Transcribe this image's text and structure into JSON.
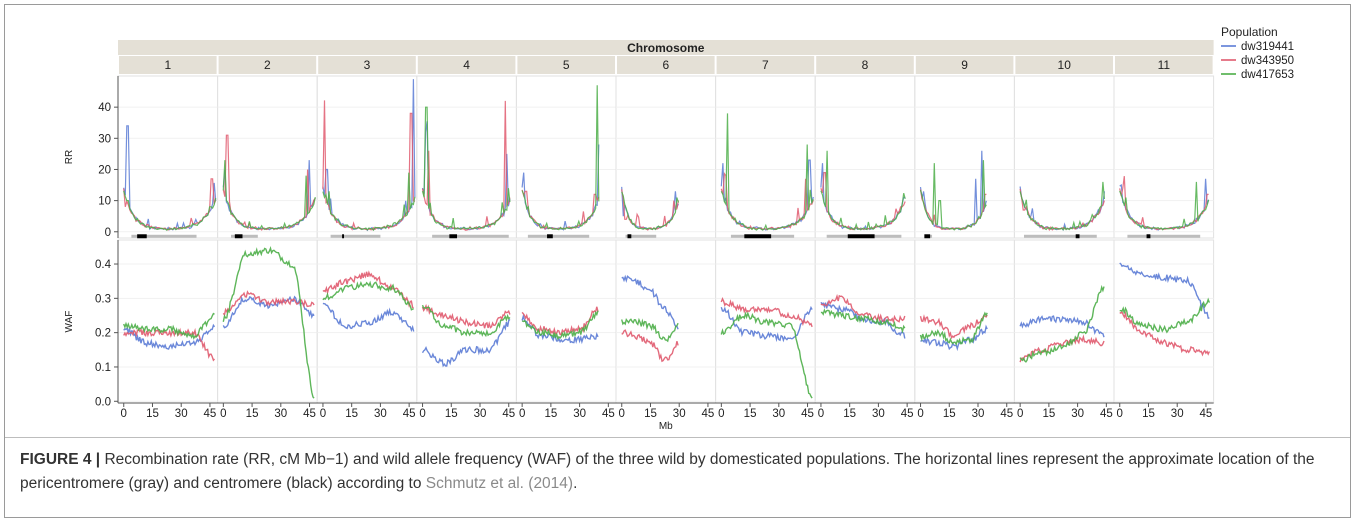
{
  "chart_data": {
    "type": "line",
    "facet_title": "Chromosome",
    "facets": [
      "1",
      "2",
      "3",
      "4",
      "5",
      "6",
      "7",
      "8",
      "9",
      "10",
      "11"
    ],
    "xlabel": "Mb",
    "x_ticks": [
      0,
      15,
      30,
      45
    ],
    "xlim": [
      -3,
      49
    ],
    "legend": {
      "title": "Population",
      "position": "top-right"
    },
    "series": [
      {
        "name": "dw319441",
        "color": "#5b7bd5"
      },
      {
        "name": "dw343950",
        "color": "#e05a6e"
      },
      {
        "name": "dw417653",
        "color": "#4cae48"
      }
    ],
    "rows": [
      {
        "ylabel": "RR",
        "ylim": [
          -2,
          50
        ],
        "y_ticks": [
          0,
          10,
          20,
          30,
          40
        ]
      },
      {
        "ylabel": "WAF",
        "ylim": [
          -0.005,
          0.47
        ],
        "y_ticks": [
          0.0,
          0.1,
          0.2,
          0.3,
          0.4
        ],
        "y_tick_labels": [
          "0.0",
          "0.1",
          "0.2",
          "0.3",
          "0.4"
        ]
      }
    ],
    "chromosome_lengths_mb": [
      48,
      48,
      48,
      46,
      40,
      30,
      48,
      44,
      35,
      44,
      47
    ],
    "pericentromere_mb": [
      [
        4,
        38
      ],
      [
        4,
        18
      ],
      [
        4,
        30
      ],
      [
        5,
        45
      ],
      [
        3,
        35
      ],
      [
        2,
        18
      ],
      [
        5,
        38
      ],
      [
        3,
        42
      ],
      [
        2,
        6
      ],
      [
        2,
        40
      ],
      [
        4,
        42
      ]
    ],
    "centromere_mb": [
      [
        7,
        12
      ],
      [
        6,
        10
      ],
      [
        10,
        11
      ],
      [
        14,
        18
      ],
      [
        13,
        16
      ],
      [
        3,
        5
      ],
      [
        12,
        26
      ],
      [
        14,
        28
      ],
      [
        2,
        5
      ],
      [
        29,
        31
      ],
      [
        14,
        16
      ]
    ],
    "rr_peaks": [
      [
        [
          2,
          34,
          0
        ],
        [
          1,
          8,
          1
        ],
        [
          2,
          10,
          2
        ],
        [
          46,
          17,
          1
        ],
        [
          47,
          10,
          0
        ],
        [
          45,
          8,
          2
        ]
      ],
      [
        [
          1,
          20,
          0
        ],
        [
          2,
          31,
          1
        ],
        [
          1,
          23,
          2
        ],
        [
          45,
          23,
          0
        ],
        [
          44,
          20,
          1
        ],
        [
          43,
          18,
          2
        ]
      ],
      [
        [
          2,
          20,
          0
        ],
        [
          1,
          38,
          1
        ],
        [
          3,
          13,
          2
        ],
        [
          47,
          49,
          0
        ],
        [
          46,
          38,
          1
        ],
        [
          45,
          19,
          2
        ]
      ],
      [
        [
          2,
          32,
          0
        ],
        [
          3,
          26,
          1
        ],
        [
          2,
          40,
          2
        ],
        [
          43,
          42,
          1
        ],
        [
          44,
          25,
          0
        ],
        [
          45,
          14,
          2
        ]
      ],
      [
        [
          1,
          19,
          0
        ],
        [
          2,
          13,
          1
        ],
        [
          3,
          8,
          2
        ],
        [
          39,
          47,
          2
        ],
        [
          40,
          28,
          0
        ],
        [
          38,
          12,
          1
        ]
      ],
      [
        [
          1,
          5,
          0
        ],
        [
          2,
          4,
          1
        ],
        [
          28,
          13,
          0
        ],
        [
          29,
          11,
          2
        ],
        [
          27,
          10,
          1
        ]
      ],
      [
        [
          1,
          22,
          0
        ],
        [
          2,
          18,
          1
        ],
        [
          3,
          38,
          2
        ],
        [
          46,
          23,
          0
        ],
        [
          45,
          28,
          2
        ],
        [
          44,
          17,
          1
        ]
      ],
      [
        [
          1,
          22,
          0
        ],
        [
          2,
          19,
          1
        ],
        [
          3,
          26,
          2
        ],
        [
          43,
          11,
          0
        ],
        [
          42,
          8,
          1
        ]
      ],
      [
        [
          7,
          22,
          2
        ],
        [
          10,
          10,
          2
        ],
        [
          29,
          17,
          0
        ],
        [
          32,
          26,
          0
        ],
        [
          33,
          23,
          2
        ],
        [
          34,
          12,
          1
        ]
      ],
      [
        [
          1,
          9,
          0
        ],
        [
          2,
          7,
          1
        ],
        [
          43,
          16,
          2
        ],
        [
          44,
          13,
          0
        ],
        [
          44,
          10,
          1
        ]
      ],
      [
        [
          1,
          15,
          0
        ],
        [
          2,
          14,
          1
        ],
        [
          3,
          11,
          2
        ],
        [
          40,
          16,
          2
        ],
        [
          45,
          17,
          0
        ],
        [
          46,
          12,
          1
        ]
      ]
    ],
    "waf_trends": [
      [
        [
          0.21,
          0.17,
          0.16,
          0.17,
          0.22
        ],
        [
          0.2,
          0.2,
          0.2,
          0.2,
          0.12
        ],
        [
          0.22,
          0.21,
          0.21,
          0.19,
          0.25
        ]
      ],
      [
        [
          0.22,
          0.3,
          0.28,
          0.3,
          0.25
        ],
        [
          0.26,
          0.31,
          0.29,
          0.29,
          0.28
        ],
        [
          0.24,
          0.43,
          0.44,
          0.4,
          0.01
        ]
      ],
      [
        [
          0.28,
          0.22,
          0.23,
          0.26,
          0.21
        ],
        [
          0.32,
          0.35,
          0.37,
          0.33,
          0.28
        ],
        [
          0.3,
          0.33,
          0.34,
          0.33,
          0.27
        ]
      ],
      [
        [
          0.15,
          0.11,
          0.15,
          0.15,
          0.23
        ],
        [
          0.27,
          0.25,
          0.23,
          0.22,
          0.26
        ],
        [
          0.28,
          0.22,
          0.2,
          0.2,
          0.25
        ]
      ],
      [
        [
          0.24,
          0.19,
          0.18,
          0.18,
          0.19
        ],
        [
          0.25,
          0.21,
          0.2,
          0.21,
          0.27
        ],
        [
          0.23,
          0.2,
          0.19,
          0.2,
          0.26
        ]
      ],
      [
        [
          0.36,
          0.35,
          0.32,
          0.27,
          0.21
        ],
        [
          0.2,
          0.19,
          0.17,
          0.12,
          0.17
        ],
        [
          0.23,
          0.23,
          0.22,
          0.18,
          0.22
        ]
      ],
      [
        [
          0.27,
          0.2,
          0.19,
          0.18,
          0.27
        ],
        [
          0.29,
          0.27,
          0.27,
          0.25,
          0.22
        ],
        [
          0.2,
          0.25,
          0.23,
          0.22,
          0.01
        ]
      ],
      [
        [
          0.28,
          0.27,
          0.24,
          0.23,
          0.19
        ],
        [
          0.28,
          0.3,
          0.25,
          0.24,
          0.24
        ],
        [
          0.26,
          0.25,
          0.24,
          0.23,
          0.21
        ]
      ],
      [
        [
          0.18,
          0.17,
          0.16,
          0.18,
          0.21
        ],
        [
          0.24,
          0.23,
          0.19,
          0.22,
          0.25
        ],
        [
          0.19,
          0.2,
          0.17,
          0.18,
          0.26
        ]
      ],
      [
        [
          0.22,
          0.24,
          0.24,
          0.23,
          0.19
        ],
        [
          0.12,
          0.15,
          0.17,
          0.18,
          0.17
        ],
        [
          0.12,
          0.14,
          0.16,
          0.2,
          0.33
        ]
      ],
      [
        [
          0.4,
          0.37,
          0.36,
          0.35,
          0.25
        ],
        [
          0.26,
          0.2,
          0.17,
          0.15,
          0.14
        ],
        [
          0.27,
          0.22,
          0.21,
          0.23,
          0.29
        ]
      ]
    ]
  },
  "caption": {
    "label": "FIGURE 4 |",
    "text": " Recombination rate (RR, cM Mb−1) and wild allele frequency (WAF) of the three wild by domesticated populations. The horizontal lines represent the approximate location of the pericentromere (gray) and centromere (black) according to ",
    "reference": "Schmutz et al. (2014)",
    "end": "."
  }
}
